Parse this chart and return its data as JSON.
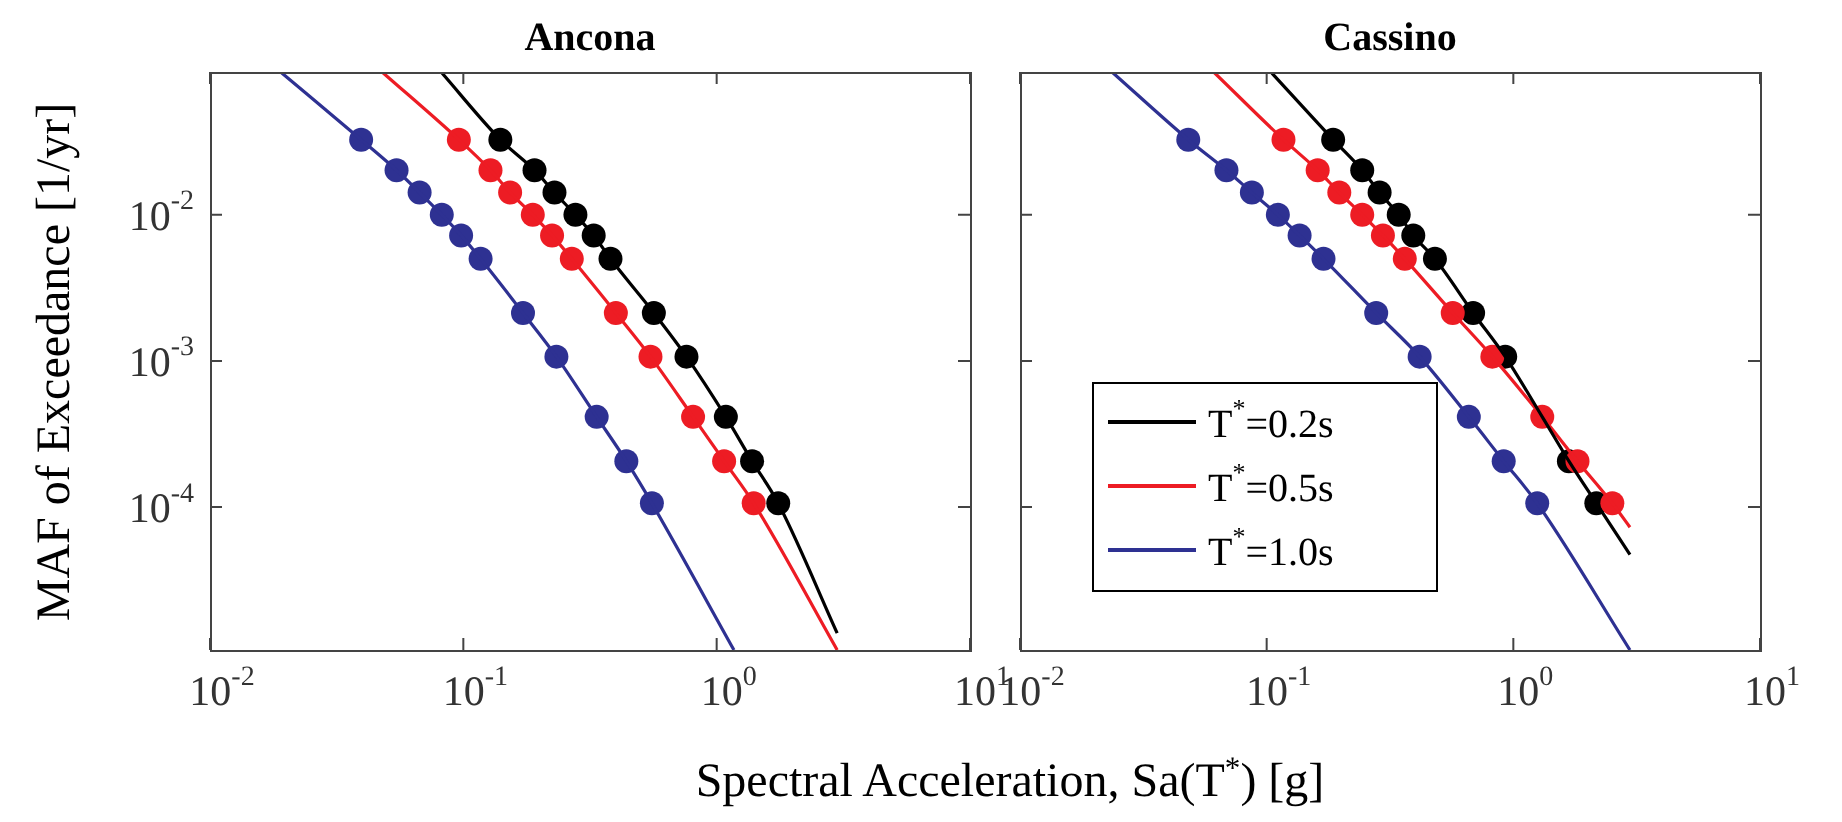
{
  "chart_data": [
    {
      "type": "line",
      "title": "Ancona",
      "ylabel": "MAF of Exceedance [1/yr]",
      "xlabel": "Spectral Acceleration, Sa(T$^{*}$) [g]",
      "log": "xy",
      "grid": false,
      "legend": false,
      "xlim": [
        0.01,
        10
      ],
      "ylim": [
        1.05e-05,
        0.095
      ],
      "xticks": [
        {
          "value": 0.01,
          "label": "10$^{-2}$"
        },
        {
          "value": 0.1,
          "label": "10$^{-1}$"
        },
        {
          "value": 1,
          "label": "10$^{0}$"
        },
        {
          "value": 10,
          "label": "10$^{1}$"
        }
      ],
      "yticks": [
        {
          "value": 0.0001,
          "label": "10$^{-4}$"
        },
        {
          "value": 0.001,
          "label": "10$^{-3}$"
        },
        {
          "value": 0.01,
          "label": "10$^{-2}$"
        }
      ],
      "series": [
        {
          "color": "#000000",
          "x": [
            0.0817,
            0.14,
            0.191,
            0.229,
            0.277,
            0.327,
            0.381,
            0.565,
            0.76,
            1.087,
            1.38,
            1.75,
            2.99
          ],
          "values": [
            0.095,
            0.0327,
            0.0202,
            0.0142,
            0.01,
            0.00723,
            0.005,
            0.00213,
            0.00107,
            0.000414,
            0.000206,
            0.000106,
            1.37e-05
          ]
        },
        {
          "color": "#ed1c24",
          "x": [
            0.0478,
            0.096,
            0.128,
            0.153,
            0.188,
            0.224,
            0.268,
            0.4,
            0.548,
            0.807,
            1.07,
            1.4,
            2.99
          ],
          "values": [
            0.095,
            0.0327,
            0.0202,
            0.0142,
            0.01,
            0.00723,
            0.005,
            0.00213,
            0.00107,
            0.000414,
            0.000206,
            0.000106,
            1.05e-05
          ]
        },
        {
          "color": "#2e3192",
          "x": [
            0.019,
            0.0395,
            0.0545,
            0.0672,
            0.0822,
            0.098,
            0.117,
            0.172,
            0.233,
            0.336,
            0.44,
            0.555,
            1.17
          ],
          "values": [
            0.095,
            0.0327,
            0.0202,
            0.0142,
            0.01,
            0.00723,
            0.005,
            0.00213,
            0.00107,
            0.000414,
            0.000206,
            0.000106,
            1.05e-05
          ]
        },
        {
          "color": "#000000",
          "type": "scatter",
          "marker": "circle",
          "x": [
            0.14,
            0.191,
            0.229,
            0.277,
            0.327,
            0.381,
            0.565,
            0.76,
            1.087,
            1.38,
            1.75
          ],
          "values": [
            0.0327,
            0.0202,
            0.0142,
            0.01,
            0.00723,
            0.005,
            0.00213,
            0.00107,
            0.000414,
            0.000206,
            0.000106
          ]
        },
        {
          "color": "#ed1c24",
          "type": "scatter",
          "marker": "circle",
          "x": [
            0.096,
            0.128,
            0.153,
            0.188,
            0.224,
            0.268,
            0.4,
            0.548,
            0.807,
            1.07,
            1.4
          ],
          "values": [
            0.0327,
            0.0202,
            0.0142,
            0.01,
            0.00723,
            0.005,
            0.00213,
            0.00107,
            0.000414,
            0.000206,
            0.000106
          ]
        },
        {
          "color": "#2e3192",
          "type": "scatter",
          "marker": "circle",
          "x": [
            0.0395,
            0.0545,
            0.0672,
            0.0822,
            0.098,
            0.117,
            0.172,
            0.233,
            0.336,
            0.44,
            0.555
          ],
          "values": [
            0.0327,
            0.0202,
            0.0142,
            0.01,
            0.00723,
            0.005,
            0.00213,
            0.00107,
            0.000414,
            0.000206,
            0.000106
          ]
        }
      ]
    },
    {
      "type": "line",
      "title": "Cassino",
      "log": "xy",
      "grid": false,
      "legend": "bottom left",
      "tick_labels": "x",
      "xlim": [
        0.01,
        10
      ],
      "ylim": [
        1.05e-05,
        0.095
      ],
      "xticks": [
        {
          "value": 0.01,
          "label": "10$^{-2}$"
        },
        {
          "value": 0.1,
          "label": "10$^{-1}$"
        },
        {
          "value": 1,
          "label": "10$^{0}$"
        },
        {
          "value": 10,
          "label": "10$^{1}$"
        }
      ],
      "yticks": [
        0.0001,
        0.001,
        0.01
      ],
      "series": [
        {
          "name": "T$^{*}$=0.2s",
          "color": "#000000",
          "x": [
            0.104,
            0.186,
            0.244,
            0.287,
            0.343,
            0.393,
            0.481,
            0.687,
            0.927,
            1.31,
            1.68,
            2.17,
            2.97
          ],
          "values": [
            0.095,
            0.0327,
            0.0202,
            0.0142,
            0.01,
            0.00723,
            0.005,
            0.00213,
            0.00107,
            0.000414,
            0.000206,
            0.000106,
            4.72e-05
          ]
        },
        {
          "name": "T$^{*}$=0.5s",
          "color": "#ed1c24",
          "x": [
            0.061,
            0.117,
            0.161,
            0.197,
            0.244,
            0.296,
            0.363,
            0.568,
            0.822,
            1.31,
            1.82,
            2.52,
            2.97
          ],
          "values": [
            0.095,
            0.0327,
            0.0202,
            0.0142,
            0.01,
            0.00723,
            0.005,
            0.00213,
            0.00107,
            0.000414,
            0.000206,
            0.000106,
            7.27e-05
          ]
        },
        {
          "name": "T$^{*}$=1.0s",
          "color": "#2e3192",
          "x": [
            0.0236,
            0.0481,
            0.0687,
            0.0871,
            0.111,
            0.136,
            0.17,
            0.278,
            0.417,
            0.66,
            0.914,
            1.25,
            2.97
          ],
          "values": [
            0.095,
            0.0327,
            0.0202,
            0.0142,
            0.01,
            0.00723,
            0.005,
            0.00213,
            0.00107,
            0.000414,
            0.000206,
            0.000106,
            1.05e-05
          ]
        },
        {
          "color": "#ed1c24",
          "type": "scatter",
          "marker": "circle",
          "x": [
            0.117,
            0.161,
            0.197,
            0.244,
            0.296,
            0.363,
            0.568,
            0.822,
            1.31,
            1.82,
            2.52
          ],
          "values": [
            0.0327,
            0.0202,
            0.0142,
            0.01,
            0.00723,
            0.005,
            0.00213,
            0.00107,
            0.000414,
            0.000206,
            0.000106
          ]
        },
        {
          "color": "#000000",
          "type": "scatter",
          "marker": "circle",
          "x": [
            0.186,
            0.244,
            0.287,
            0.343,
            0.393,
            0.481,
            0.687,
            0.927,
            1.31,
            1.68,
            2.17
          ],
          "values": [
            0.0327,
            0.0202,
            0.0142,
            0.01,
            0.00723,
            0.005,
            0.00213,
            0.00107,
            null,
            0.000206,
            0.000106
          ]
        },
        {
          "color": "#2e3192",
          "type": "scatter",
          "marker": "circle",
          "x": [
            0.0481,
            0.0687,
            0.0871,
            0.111,
            0.136,
            0.17,
            0.278,
            0.417,
            0.66,
            0.914,
            1.25
          ],
          "values": [
            0.0327,
            0.0202,
            0.0142,
            0.01,
            0.00723,
            0.005,
            0.00213,
            0.00107,
            0.000414,
            0.000206,
            0.000106
          ]
        }
      ]
    }
  ]
}
